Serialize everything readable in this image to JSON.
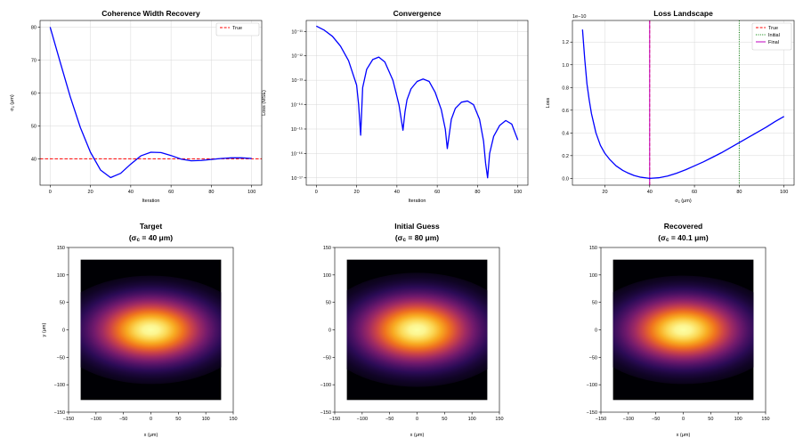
{
  "chart_data": [
    {
      "type": "line",
      "title": "Coherence Width Recovery",
      "xlabel": "Iteration",
      "ylabel": "σc (μm)",
      "xlim": [
        -5,
        105
      ],
      "ylim": [
        32,
        82
      ],
      "xticks": [
        0,
        20,
        40,
        60,
        80,
        100
      ],
      "yticks": [
        40,
        50,
        60,
        70,
        80
      ],
      "grid": true,
      "legend": "top-right",
      "reference_line": {
        "name": "True",
        "y": 40,
        "color": "#ff0000",
        "style": "dashed"
      },
      "series": [
        {
          "color": "#0000ff",
          "x": [
            0,
            5,
            10,
            15,
            20,
            25,
            30,
            35,
            40,
            45,
            50,
            55,
            60,
            65,
            70,
            75,
            80,
            85,
            90,
            95,
            100
          ],
          "y": [
            80,
            69.3,
            58.8,
            49.5,
            42.0,
            36.6,
            34.3,
            35.6,
            38.4,
            40.9,
            42.0,
            41.9,
            41.0,
            39.9,
            39.4,
            39.5,
            39.8,
            40.1,
            40.3,
            40.3,
            40.1
          ]
        }
      ]
    },
    {
      "type": "line",
      "title": "Convergence",
      "xlabel": "Iteration",
      "ylabel": "Loss (MSE)",
      "yscale": "log",
      "xlim": [
        -5,
        105
      ],
      "ylim_exp": [
        -17.3,
        -10.55
      ],
      "xticks": [
        0,
        20,
        40,
        60,
        80,
        100
      ],
      "yticks": [
        "10⁻¹⁷",
        "10⁻¹⁶",
        "10⁻¹⁵",
        "10⁻¹⁴",
        "10⁻¹³",
        "10⁻¹²",
        "10⁻¹¹"
      ],
      "grid": true,
      "series": [
        {
          "color": "#0000ff",
          "x": [
            0,
            4,
            8,
            12,
            16,
            20,
            21,
            22,
            23,
            25,
            28,
            31,
            34,
            38,
            41,
            43,
            44,
            45,
            47,
            50,
            53,
            56,
            59,
            62,
            64,
            65,
            66,
            67,
            69,
            72,
            75,
            78,
            81,
            83,
            84,
            85,
            86,
            88,
            91,
            94,
            97,
            100
          ],
          "log10_y": [
            -10.78,
            -10.95,
            -11.2,
            -11.6,
            -12.2,
            -13.2,
            -14.0,
            -15.25,
            -13.3,
            -12.55,
            -12.15,
            -12.05,
            -12.25,
            -13.0,
            -14.0,
            -15.05,
            -14.3,
            -13.8,
            -13.35,
            -13.05,
            -12.95,
            -13.05,
            -13.5,
            -14.2,
            -15.0,
            -15.8,
            -15.2,
            -14.6,
            -14.15,
            -13.9,
            -13.85,
            -14.0,
            -14.6,
            -15.5,
            -16.4,
            -17.0,
            -16.0,
            -15.3,
            -14.85,
            -14.65,
            -14.8,
            -15.45
          ]
        }
      ]
    },
    {
      "type": "line",
      "title": "Loss Landscape",
      "xlabel": "σc (μm)",
      "ylabel": "Loss",
      "offset_text": "1e−10",
      "xlim": [
        5.5,
        104.5
      ],
      "ylim": [
        -0.06,
        1.39
      ],
      "xticks": [
        20,
        40,
        60,
        80,
        100
      ],
      "yticks": [
        "0.0",
        "0.2",
        "0.4",
        "0.6",
        "0.8",
        "1.0",
        "1.2"
      ],
      "ytick_values": [
        0,
        0.2,
        0.4,
        0.6,
        0.8,
        1.0,
        1.2
      ],
      "grid": true,
      "legend": "top-right",
      "vlines": [
        {
          "name": "True",
          "x": 40,
          "color": "#ff0000",
          "style": "dashed"
        },
        {
          "name": "Initial",
          "x": 80,
          "color": "#008000",
          "style": "dotted"
        },
        {
          "name": "Final",
          "x": 40,
          "color": "#bf00bf",
          "style": "solid"
        }
      ],
      "series": [
        {
          "color": "#0000ff",
          "x": [
            10,
            11,
            12,
            13,
            14,
            16,
            18,
            20,
            22,
            25,
            28,
            30,
            33,
            36,
            40,
            44,
            48,
            52,
            56,
            60,
            64,
            68,
            72,
            76,
            80,
            84,
            88,
            92,
            96,
            100
          ],
          "y": [
            1.31,
            1.05,
            0.83,
            0.69,
            0.57,
            0.4,
            0.29,
            0.22,
            0.17,
            0.11,
            0.07,
            0.05,
            0.025,
            0.01,
            0.0,
            0.005,
            0.02,
            0.045,
            0.075,
            0.11,
            0.145,
            0.185,
            0.225,
            0.27,
            0.315,
            0.36,
            0.405,
            0.45,
            0.5,
            0.545
          ]
        }
      ]
    },
    {
      "type": "heatmap",
      "title": "Target",
      "subtitle": "(σc = 40 μm)",
      "xlabel": "x (μm)",
      "ylabel": "y (μm)",
      "xlim": [
        -150,
        150
      ],
      "ylim": [
        -150,
        150
      ],
      "xticks": [
        -150,
        -100,
        -50,
        0,
        50,
        100,
        150
      ],
      "yticks": [
        -150,
        -100,
        -50,
        0,
        50,
        100,
        150
      ],
      "extent": [
        -128,
        128
      ],
      "sigma_x": 68,
      "sigma_y": 38,
      "colormap": "inferno"
    },
    {
      "type": "heatmap",
      "title": "Initial Guess",
      "subtitle": "(σc = 80 μm)",
      "xlabel": "x (μm)",
      "ylabel": "",
      "xlim": [
        -150,
        150
      ],
      "ylim": [
        -150,
        150
      ],
      "xticks": [
        -150,
        -100,
        -50,
        0,
        50,
        100,
        150
      ],
      "yticks": [
        -150,
        -100,
        -50,
        0,
        50,
        100,
        150
      ],
      "extent": [
        -128,
        128
      ],
      "sigma_x": 68,
      "sigma_y": 40,
      "colormap": "inferno"
    },
    {
      "type": "heatmap",
      "title": "Recovered",
      "subtitle": "(σc = 40.1 μm)",
      "xlabel": "x (μm)",
      "ylabel": "",
      "xlim": [
        -150,
        150
      ],
      "ylim": [
        -150,
        150
      ],
      "xticks": [
        -150,
        -100,
        -50,
        0,
        50,
        100,
        150
      ],
      "yticks": [
        -150,
        -100,
        -50,
        0,
        50,
        100,
        150
      ],
      "extent": [
        -128,
        128
      ],
      "sigma_x": 68,
      "sigma_y": 38,
      "colormap": "inferno"
    }
  ]
}
